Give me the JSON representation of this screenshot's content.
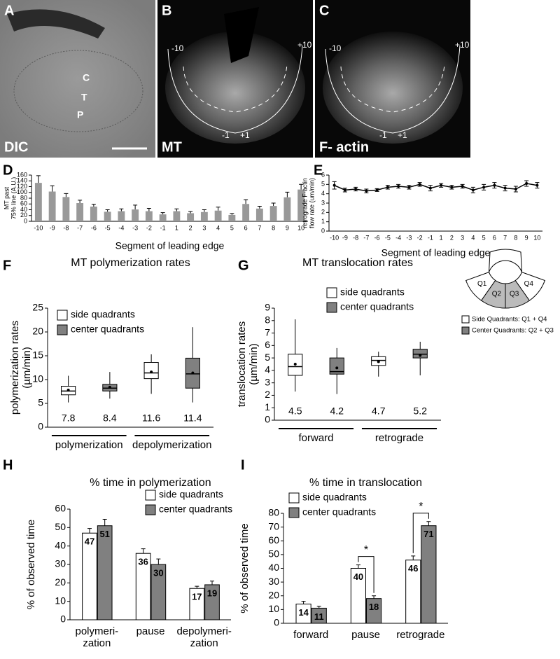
{
  "images": [
    {
      "panel": "A",
      "label": "DIC",
      "annotations": [
        "C",
        "T",
        "P"
      ]
    },
    {
      "panel": "B",
      "label": "MT",
      "segment_labels": [
        "-10",
        "+10",
        "-1",
        "+1"
      ]
    },
    {
      "panel": "C",
      "label": "F- actin",
      "segment_labels": [
        "-10",
        "+10",
        "-1",
        "+1"
      ]
    }
  ],
  "chart_data": [
    {
      "panel": "D",
      "type": "bar",
      "y_label": [
        "MT past",
        "75% line (A.U.)"
      ],
      "x_label": "Segment of leading edge",
      "categories": [
        "-10",
        "-9",
        "-8",
        "-7",
        "-6",
        "-5",
        "-4",
        "-3",
        "-2",
        "-1",
        "1",
        "2",
        "3",
        "4",
        "5",
        "6",
        "7",
        "8",
        "9",
        "10"
      ],
      "values": [
        133,
        103,
        84,
        63,
        51,
        33,
        35,
        41,
        35,
        24,
        35,
        28,
        32,
        37,
        22,
        60,
        44,
        53,
        83,
        110
      ],
      "errors": [
        25,
        20,
        12,
        10,
        8,
        7,
        8,
        15,
        10,
        6,
        8,
        6,
        8,
        12,
        5,
        15,
        8,
        10,
        18,
        18
      ],
      "color": "#999999",
      "ylim": [
        0,
        160
      ],
      "yticks": [
        0,
        20,
        40,
        60,
        80,
        100,
        120,
        140,
        160
      ]
    },
    {
      "panel": "E",
      "type": "line",
      "y_label": [
        "retrograde F-actin",
        "flow rate (um/min)"
      ],
      "x_label": "Segment of leading edge",
      "categories": [
        "-10",
        "-9",
        "-8",
        "-7",
        "-6",
        "-5",
        "-4",
        "-3",
        "-2",
        "-1",
        "1",
        "2",
        "3",
        "4",
        "5",
        "6",
        "7",
        "8",
        "9",
        "10"
      ],
      "values": [
        4.9,
        4.4,
        4.5,
        4.3,
        4.4,
        4.7,
        4.8,
        4.7,
        5.0,
        4.6,
        4.9,
        4.7,
        4.8,
        4.4,
        4.7,
        4.9,
        4.6,
        4.5,
        5.1,
        4.9
      ],
      "errors": [
        0.4,
        0.2,
        0.2,
        0.2,
        0.15,
        0.2,
        0.2,
        0.2,
        0.2,
        0.3,
        0.2,
        0.2,
        0.2,
        0.3,
        0.3,
        0.3,
        0.3,
        0.3,
        0.3,
        0.3
      ],
      "color": "#000000",
      "ylim": [
        0,
        6
      ],
      "yticks": [
        0,
        1,
        2,
        3,
        4,
        5,
        6
      ]
    },
    {
      "panel": "F",
      "type": "box",
      "title": "MT polymerization rates",
      "y_label": [
        "polymerization rates",
        "(µm/min)"
      ],
      "groups": [
        "polymerization",
        "depolymerization"
      ],
      "series": [
        {
          "name": "side quadrants",
          "color": "#ffffff",
          "boxes": [
            {
              "min": 5.2,
              "q1": 6.8,
              "median": 7.6,
              "q3": 8.6,
              "max": 10.8,
              "mean": 7.8
            },
            {
              "min": 7.0,
              "q1": 10.2,
              "median": 11.4,
              "q3": 13.6,
              "max": 15.3,
              "mean": 11.6
            }
          ]
        },
        {
          "name": "center quadrants",
          "color": "#808080",
          "boxes": [
            {
              "min": 6.0,
              "q1": 7.6,
              "median": 8.2,
              "q3": 9.0,
              "max": 11.6,
              "mean": 8.4
            },
            {
              "min": 5.2,
              "q1": 8.2,
              "median": 11.2,
              "q3": 14.5,
              "max": 21.0,
              "mean": 11.4
            }
          ]
        }
      ],
      "ylim": [
        0,
        25
      ],
      "yticks": [
        0,
        5,
        10,
        15,
        20,
        25
      ]
    },
    {
      "panel": "G",
      "type": "box",
      "title": "MT translocation rates",
      "y_label": [
        "translocation rates",
        "(µm/min)"
      ],
      "groups": [
        "forward",
        "retrograde"
      ],
      "series": [
        {
          "name": "side quadrants",
          "color": "#ffffff",
          "boxes": [
            {
              "min": 2.3,
              "q1": 3.6,
              "median": 4.3,
              "q3": 5.3,
              "max": 8.1,
              "mean": 4.5
            },
            {
              "min": 3.5,
              "q1": 4.4,
              "median": 4.8,
              "q3": 5.1,
              "max": 5.5,
              "mean": 4.7
            }
          ]
        },
        {
          "name": "center quadrants",
          "color": "#808080",
          "boxes": [
            {
              "min": 2.1,
              "q1": 3.7,
              "median": 3.9,
              "q3": 5.0,
              "max": 5.8,
              "mean": 4.2
            },
            {
              "min": 3.6,
              "q1": 5.0,
              "median": 5.3,
              "q3": 5.7,
              "max": 6.3,
              "mean": 5.2
            }
          ]
        }
      ],
      "ylim": [
        0,
        9
      ],
      "yticks": [
        0,
        1,
        2,
        3,
        4,
        5,
        6,
        7,
        8,
        9
      ],
      "inset": {
        "quadrants": [
          "Q1",
          "Q2",
          "Q3",
          "Q4"
        ],
        "legend": [
          "Side Quadrants: Q1 + Q4",
          "Center Quadrants: Q2 + Q3"
        ]
      }
    },
    {
      "panel": "H",
      "type": "bar",
      "title": "% time in polymerization",
      "y_label": "% of observed time",
      "categories": [
        [
          "polymeri-",
          "zation"
        ],
        [
          "pause"
        ],
        [
          "depolymeri-",
          "zation"
        ]
      ],
      "series": [
        {
          "name": "side quadrants",
          "color": "#ffffff",
          "values": [
            47,
            36,
            17
          ],
          "errors": [
            2.5,
            2.5,
            1.2
          ]
        },
        {
          "name": "center quadrants",
          "color": "#808080",
          "values": [
            51,
            30,
            19
          ],
          "errors": [
            3.5,
            3,
            2
          ]
        }
      ],
      "ylim": [
        0,
        60
      ],
      "yticks": [
        0,
        10,
        20,
        30,
        40,
        50,
        60
      ]
    },
    {
      "panel": "I",
      "type": "bar",
      "title": "% time in translocation",
      "y_label": "% of observed time",
      "categories": [
        [
          "forward"
        ],
        [
          "pause"
        ],
        [
          "retrograde"
        ]
      ],
      "series": [
        {
          "name": "side quadrants",
          "color": "#ffffff",
          "values": [
            14,
            40,
            46
          ],
          "errors": [
            2,
            2.5,
            3
          ]
        },
        {
          "name": "center quadrants",
          "color": "#808080",
          "values": [
            11,
            18,
            71
          ],
          "errors": [
            1.5,
            2,
            3
          ]
        }
      ],
      "significance": [
        null,
        "*",
        "*"
      ],
      "ylim": [
        0,
        80
      ],
      "yticks": [
        0,
        10,
        20,
        30,
        40,
        50,
        60,
        70,
        80
      ]
    }
  ]
}
